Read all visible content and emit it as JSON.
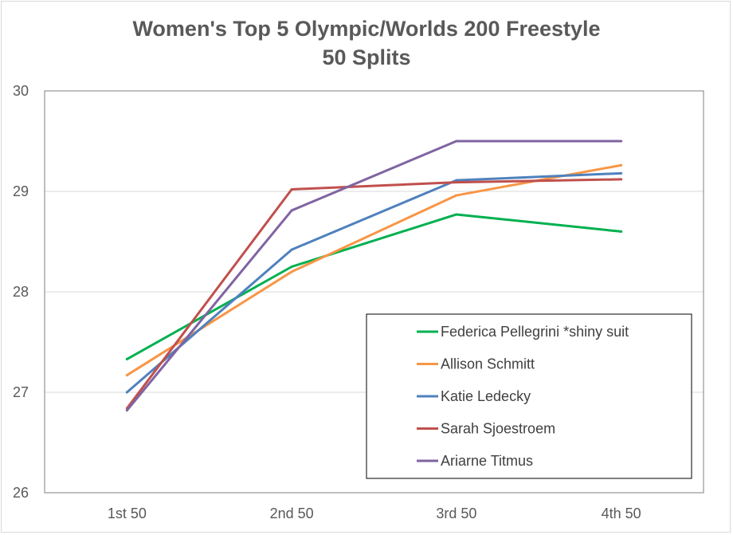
{
  "chart_data": {
    "type": "line",
    "title": "Women's Top 5 Olympic/Worlds 200 Freestyle",
    "subtitle": "50 Splits",
    "xlabel": "",
    "ylabel": "",
    "categories": [
      "1st 50",
      "2nd 50",
      "3rd 50",
      "4th 50"
    ],
    "ylim": [
      26,
      30
    ],
    "yticks": [
      26,
      27,
      28,
      29,
      30
    ],
    "grid": true,
    "legend_position": "bottom-right inside",
    "series": [
      {
        "name": "Federica Pellegrini *shiny suit",
        "color": "#00b050",
        "values": [
          27.33,
          28.25,
          28.77,
          28.6
        ]
      },
      {
        "name": "Allison Schmitt",
        "color": "#f79646",
        "values": [
          27.17,
          28.2,
          28.96,
          29.26
        ]
      },
      {
        "name": "Katie Ledecky",
        "color": "#4f81bd",
        "values": [
          27.0,
          28.42,
          29.11,
          29.18
        ]
      },
      {
        "name": "Sarah Sjoestroem",
        "color": "#c0504d",
        "values": [
          26.84,
          29.02,
          29.09,
          29.12
        ]
      },
      {
        "name": "Ariarne Titmus",
        "color": "#8064a2",
        "values": [
          26.82,
          28.81,
          29.5,
          29.5
        ]
      }
    ]
  }
}
